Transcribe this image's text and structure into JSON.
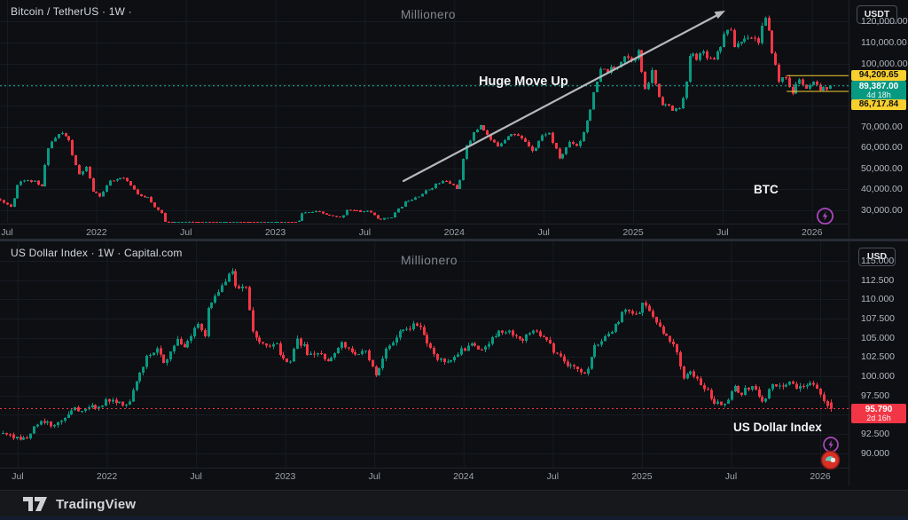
{
  "footer": {
    "brand": "TradingView"
  },
  "colors": {
    "background": "#0d0f13",
    "up": "#089981",
    "down": "#f23645",
    "yellow_level": "#f7cf2e",
    "current_line_btc": "#1fb8a2",
    "current_line_dxy": "#f23645",
    "purple_icon": "#ab47bc",
    "red_icon": "#d93025"
  },
  "panes": [
    {
      "title": "Bitcoin / TetherUS · 1W ·",
      "watermark": "Millionero",
      "currency": "USDT",
      "labels": {
        "annotation": "Huge Move Up",
        "symbol_tag": "BTC"
      },
      "scale_labels": {
        "upper": "94,209.65",
        "current": "89,387.00",
        "countdown": "4d 18h",
        "lower": "86,717.84"
      },
      "y_ticks": [
        "120,000.00",
        "110,000.00",
        "100,000.00",
        "70,000.00",
        "60,000.00",
        "50,000.00",
        "40,000.00",
        "30,000.00"
      ],
      "x_ticks": [
        "Jul",
        "2022",
        "Jul",
        "2023",
        "Jul",
        "2024",
        "Jul",
        "2025",
        "Jul",
        "2026"
      ]
    },
    {
      "title": "US Dollar Index · 1W · Capital.com",
      "watermark": "Millionero",
      "currency": "USD",
      "labels": {
        "symbol_tag": "US Dollar Index"
      },
      "scale_labels": {
        "current": "95.790",
        "countdown": "2d 16h"
      },
      "y_ticks": [
        "115.000",
        "112.500",
        "110.000",
        "107.500",
        "105.000",
        "102.500",
        "100.000",
        "97.500",
        "92.500",
        "90.000"
      ],
      "x_ticks": [
        "Jul",
        "2022",
        "Jul",
        "2023",
        "Jul",
        "2024",
        "Jul",
        "2025",
        "Jul",
        "2026"
      ]
    }
  ],
  "chart_data": [
    {
      "type": "candlestick",
      "symbol": "Bitcoin / TetherUS",
      "timeframe": "1W",
      "title": "BTC/USDT weekly, mid-2021 to early 2026",
      "x_axis": {
        "tick_labels": [
          "Jul",
          "2022",
          "Jul",
          "2023",
          "Jul",
          "2024",
          "Jul",
          "2025",
          "Jul",
          "2026"
        ],
        "tick_months_from_2021_07": [
          0,
          6,
          12,
          18,
          24,
          30,
          36,
          42,
          48,
          54
        ]
      },
      "y_axis": {
        "ticks": [
          120000,
          110000,
          100000,
          70000,
          60000,
          50000,
          40000,
          30000
        ],
        "grid": [
          120000,
          110000,
          100000,
          90000,
          80000,
          70000,
          60000,
          50000,
          40000,
          30000
        ],
        "visible_range": [
          27000,
          128000
        ]
      },
      "current_price": 89387.0,
      "countdown": "4d 18h",
      "levels": [
        94209.65,
        86717.84
      ],
      "level_box_start_month": 52.3,
      "annotations": [
        {
          "type": "arrow",
          "label": "Huge Move Up",
          "from_price": 44000,
          "to_price": 119000
        },
        {
          "type": "text",
          "label": "BTC"
        }
      ],
      "anchor_timebase": "months since 2021-07",
      "anchors": [
        [
          -0.7,
          36000
        ],
        [
          0,
          34000
        ],
        [
          0.5,
          31500
        ],
        [
          1,
          44500
        ],
        [
          2,
          43800
        ],
        [
          2.5,
          40500
        ],
        [
          3,
          61300
        ],
        [
          3.8,
          67000
        ],
        [
          4.3,
          64500
        ],
        [
          4.6,
          56500
        ],
        [
          5,
          46500
        ],
        [
          5.5,
          50500
        ],
        [
          6,
          38500
        ],
        [
          6.5,
          36800
        ],
        [
          7,
          43200
        ],
        [
          8,
          45500
        ],
        [
          9,
          37700
        ],
        [
          9.7,
          36000
        ],
        [
          10,
          31800
        ],
        [
          10.6,
          29000
        ],
        [
          11,
          19900
        ],
        [
          11.5,
          21000
        ],
        [
          12,
          23300
        ],
        [
          12.4,
          24300
        ],
        [
          13,
          20000
        ],
        [
          14,
          19400
        ],
        [
          15,
          20500
        ],
        [
          15.8,
          21000
        ],
        [
          16,
          16900
        ],
        [
          17,
          16550
        ],
        [
          17.5,
          16700
        ],
        [
          18,
          23100
        ],
        [
          19,
          23500
        ],
        [
          19.6,
          22300
        ],
        [
          20,
          28500
        ],
        [
          21,
          29300
        ],
        [
          22,
          27200
        ],
        [
          22.6,
          26300
        ],
        [
          23,
          30500
        ],
        [
          24,
          29200
        ],
        [
          24.5,
          30000
        ],
        [
          25,
          26000
        ],
        [
          25.5,
          25900
        ],
        [
          26,
          27000
        ],
        [
          27,
          34600
        ],
        [
          28,
          37700
        ],
        [
          29,
          42300
        ],
        [
          29.5,
          44000
        ],
        [
          30,
          42600
        ],
        [
          30.5,
          40000
        ],
        [
          31,
          61200
        ],
        [
          32,
          71300
        ],
        [
          32.5,
          65000
        ],
        [
          33,
          60600
        ],
        [
          33.5,
          63500
        ],
        [
          34,
          67500
        ],
        [
          35,
          62700
        ],
        [
          35.5,
          58500
        ],
        [
          36,
          64600
        ],
        [
          36.5,
          68000
        ],
        [
          37,
          59000
        ],
        [
          37.3,
          54500
        ],
        [
          38,
          63300
        ],
        [
          38.5,
          60500
        ],
        [
          39,
          70200
        ],
        [
          40,
          96400
        ],
        [
          41,
          97000
        ],
        [
          41.6,
          104500
        ],
        [
          42,
          102000
        ],
        [
          42.6,
          105500
        ],
        [
          43,
          86000
        ],
        [
          43.5,
          96500
        ],
        [
          44,
          82500
        ],
        [
          45,
          77000
        ],
        [
          45.3,
          79500
        ],
        [
          45.7,
          85000
        ],
        [
          46,
          104000
        ],
        [
          46.5,
          103500
        ],
        [
          47,
          105700
        ],
        [
          47.5,
          101500
        ],
        [
          48,
          108000
        ],
        [
          48.6,
          118500
        ],
        [
          49,
          108500
        ],
        [
          49.5,
          110800
        ],
        [
          50,
          114200
        ],
        [
          50.6,
          110500
        ],
        [
          51,
          122500
        ],
        [
          51.3,
          114000
        ],
        [
          52,
          91000
        ],
        [
          52.4,
          96000
        ],
        [
          52.8,
          84500
        ],
        [
          53,
          87500
        ],
        [
          53.4,
          93500
        ],
        [
          53.8,
          86500
        ],
        [
          54.2,
          90500
        ],
        [
          54.6,
          88000
        ],
        [
          55.0,
          87500
        ],
        [
          55.3,
          89387
        ]
      ]
    },
    {
      "type": "candlestick",
      "symbol": "US Dollar Index",
      "timeframe": "1W",
      "title": "DXY weekly, mid-2021 to early 2026",
      "x_axis": {
        "tick_labels": [
          "Jul",
          "2022",
          "Jul",
          "2023",
          "Jul",
          "2024",
          "Jul",
          "2025",
          "Jul",
          "2026"
        ],
        "tick_months_from_2021_07": [
          0,
          6,
          12,
          18,
          24,
          30,
          36,
          42,
          48,
          54
        ]
      },
      "y_axis": {
        "ticks": [
          115,
          112.5,
          110,
          107.5,
          105,
          102.5,
          100,
          97.5,
          92.5,
          90
        ],
        "grid": [
          115,
          112.5,
          110,
          107.5,
          105,
          102.5,
          100,
          97.5,
          95,
          92.5,
          90
        ],
        "visible_range": [
          89.5,
          115.5
        ]
      },
      "current_price": 95.79,
      "countdown": "2d 16h",
      "levels": [],
      "annotations": [
        {
          "type": "text",
          "label": "US Dollar Index"
        }
      ],
      "anchor_timebase": "months since 2021-07",
      "anchors": [
        [
          -1,
          92.6
        ],
        [
          0,
          92.1
        ],
        [
          0.6,
          91.8
        ],
        [
          1,
          92.6
        ],
        [
          2,
          94.2
        ],
        [
          2.5,
          93.3
        ],
        [
          3,
          94.1
        ],
        [
          4,
          96.0
        ],
        [
          4.4,
          95.0
        ],
        [
          5,
          95.7
        ],
        [
          6,
          96.6
        ],
        [
          6.5,
          97.2
        ],
        [
          7,
          96.7
        ],
        [
          7.5,
          95.9
        ],
        [
          8,
          98.3
        ],
        [
          9,
          103.0
        ],
        [
          9.6,
          103.8
        ],
        [
          10,
          101.8
        ],
        [
          11,
          104.7
        ],
        [
          11.5,
          103.8
        ],
        [
          12,
          105.9
        ],
        [
          12.4,
          107.0
        ],
        [
          12.8,
          105.5
        ],
        [
          13,
          108.8
        ],
        [
          14,
          112.1
        ],
        [
          14.7,
          114.1
        ],
        [
          15,
          110.8
        ],
        [
          15.5,
          112.5
        ],
        [
          16,
          105.9
        ],
        [
          17,
          103.5
        ],
        [
          17.6,
          104.7
        ],
        [
          18,
          102.1
        ],
        [
          18.5,
          101.5
        ],
        [
          19,
          104.9
        ],
        [
          20,
          102.5
        ],
        [
          20.5,
          103.2
        ],
        [
          21,
          101.7
        ],
        [
          22,
          104.3
        ],
        [
          22.5,
          103.2
        ],
        [
          23,
          102.9
        ],
        [
          23.5,
          103.6
        ],
        [
          24,
          101.9
        ],
        [
          24.3,
          99.9
        ],
        [
          25,
          103.6
        ],
        [
          26,
          106.2
        ],
        [
          27,
          106.7
        ],
        [
          27.5,
          105.8
        ],
        [
          28,
          103.5
        ],
        [
          29,
          101.3
        ],
        [
          29.5,
          102.6
        ],
        [
          30,
          103.3
        ],
        [
          31,
          104.1
        ],
        [
          31.5,
          103.6
        ],
        [
          32,
          104.5
        ],
        [
          33,
          106.2
        ],
        [
          34,
          104.6
        ],
        [
          34.5,
          105.1
        ],
        [
          35,
          105.9
        ],
        [
          36,
          104.1
        ],
        [
          37,
          101.7
        ],
        [
          37.5,
          100.9
        ],
        [
          38,
          100.8
        ],
        [
          38.4,
          100.2
        ],
        [
          39,
          104.0
        ],
        [
          40,
          105.7
        ],
        [
          40.5,
          106.8
        ],
        [
          41,
          108.5
        ],
        [
          42,
          108.4
        ],
        [
          42.4,
          109.6
        ],
        [
          43,
          107.6
        ],
        [
          43.5,
          106.6
        ],
        [
          44,
          104.2
        ],
        [
          44.5,
          103.9
        ],
        [
          45,
          99.5
        ],
        [
          45.5,
          101.0
        ],
        [
          46,
          99.4
        ],
        [
          46.6,
          98.0
        ],
        [
          47,
          96.9
        ],
        [
          47.8,
          96.4
        ],
        [
          48,
          97.3
        ],
        [
          48.5,
          98.4
        ],
        [
          49,
          97.8
        ],
        [
          49.4,
          98.6
        ],
        [
          50,
          97.9
        ],
        [
          50.4,
          96.8
        ],
        [
          51,
          99.0
        ],
        [
          51.5,
          98.5
        ],
        [
          52,
          99.3
        ],
        [
          52.5,
          98.7
        ],
        [
          53,
          98.9
        ],
        [
          53.6,
          99.2
        ],
        [
          54,
          98.2
        ],
        [
          54.4,
          97.4
        ],
        [
          54.75,
          95.79
        ]
      ]
    }
  ]
}
